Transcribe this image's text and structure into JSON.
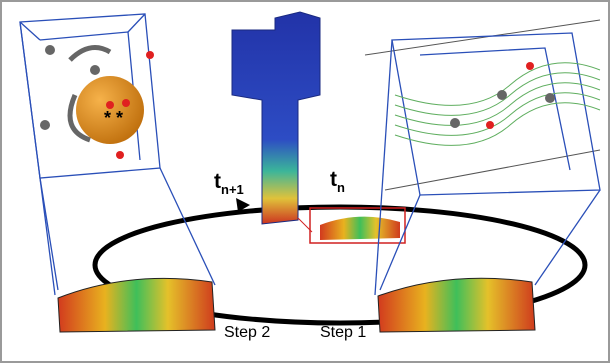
{
  "labels": [
    {
      "main": "t",
      "sub": "n+1"
    },
    {
      "main": "t",
      "sub": "n"
    }
  ],
  "steps": [
    "Step 2",
    "Step 1"
  ]
}
